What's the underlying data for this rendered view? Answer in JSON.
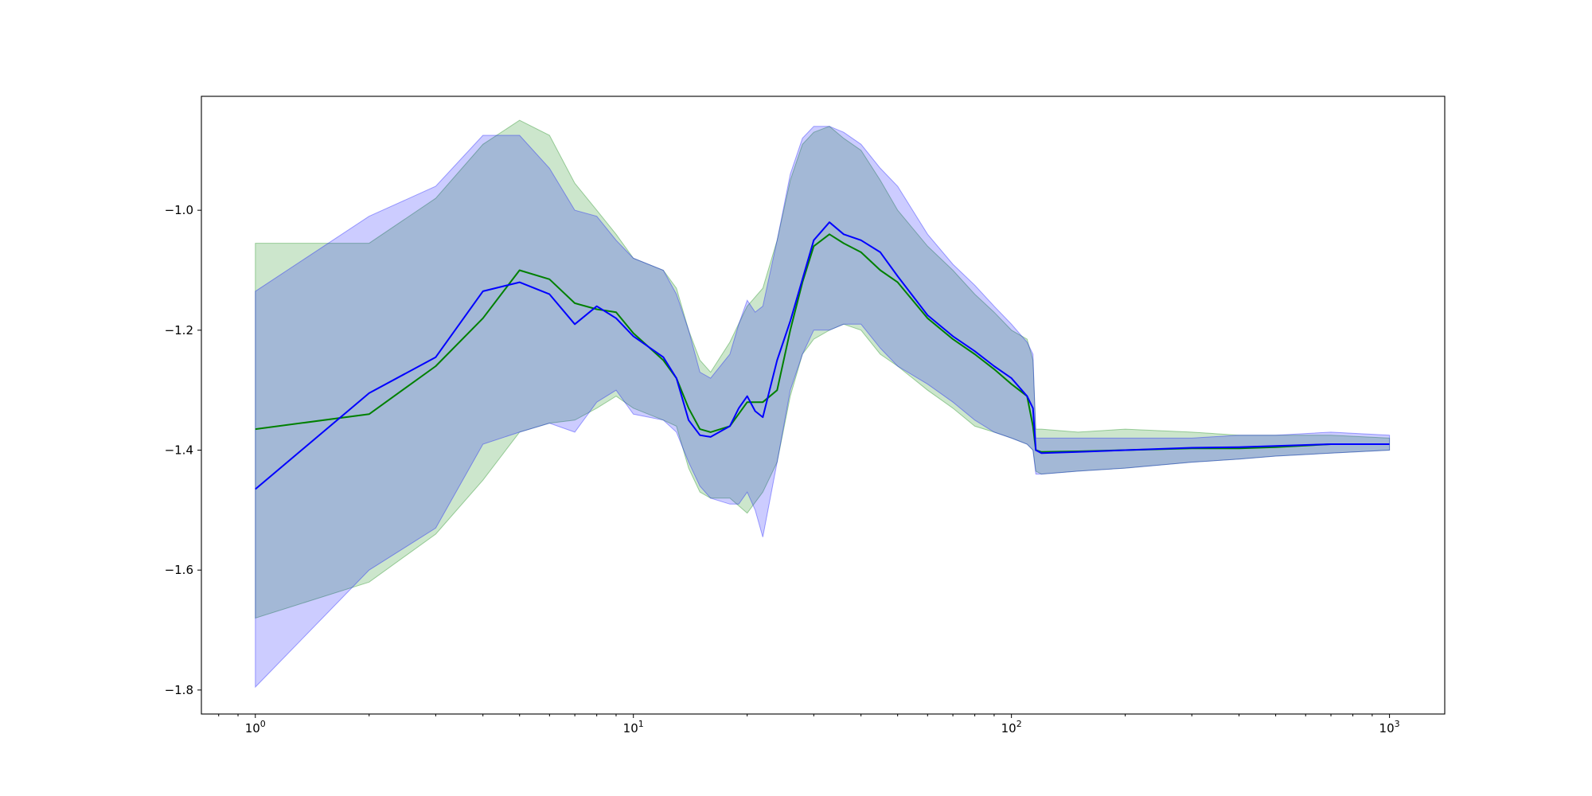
{
  "chart_data": {
    "type": "line",
    "title": "",
    "xlabel": "",
    "ylabel": "",
    "x_scale": "log",
    "xlim": [
      0.72,
      1400
    ],
    "ylim": [
      -1.84,
      -0.81
    ],
    "grid": false,
    "x_ticks": [
      {
        "value": 1,
        "base": "10",
        "exp": "0"
      },
      {
        "value": 10,
        "base": "10",
        "exp": "1"
      },
      {
        "value": 100,
        "base": "10",
        "exp": "2"
      },
      {
        "value": 1000,
        "base": "10",
        "exp": "3"
      }
    ],
    "y_ticks": [
      {
        "value": -1.0,
        "label": "−1.0"
      },
      {
        "value": -1.2,
        "label": "−1.2"
      },
      {
        "value": -1.4,
        "label": "−1.4"
      },
      {
        "value": -1.6,
        "label": "−1.6"
      },
      {
        "value": -1.8,
        "label": "−1.8"
      }
    ],
    "series": [
      {
        "color": "#008000",
        "band_color": "#008000",
        "band_opacity": 0.2,
        "x": [
          1,
          2,
          3,
          4,
          5,
          6,
          7,
          8,
          9,
          10,
          12,
          13,
          14,
          15,
          16,
          18,
          20,
          22,
          24,
          26,
          28,
          30,
          33,
          36,
          40,
          45,
          50,
          60,
          70,
          80,
          90,
          100,
          110,
          114,
          116,
          120,
          150,
          200,
          300,
          400,
          500,
          700,
          1000
        ],
        "mean": [
          -1.365,
          -1.34,
          -1.26,
          -1.18,
          -1.1,
          -1.115,
          -1.155,
          -1.165,
          -1.17,
          -1.205,
          -1.25,
          -1.28,
          -1.33,
          -1.365,
          -1.37,
          -1.36,
          -1.32,
          -1.32,
          -1.3,
          -1.2,
          -1.12,
          -1.06,
          -1.04,
          -1.055,
          -1.07,
          -1.1,
          -1.12,
          -1.18,
          -1.215,
          -1.24,
          -1.265,
          -1.29,
          -1.31,
          -1.36,
          -1.4,
          -1.403,
          -1.402,
          -1.4,
          -1.397,
          -1.397,
          -1.395,
          -1.39,
          -1.39
        ],
        "upper": [
          -1.055,
          -1.055,
          -0.98,
          -0.89,
          -0.85,
          -0.875,
          -0.955,
          -1.0,
          -1.04,
          -1.08,
          -1.1,
          -1.13,
          -1.2,
          -1.25,
          -1.27,
          -1.22,
          -1.16,
          -1.13,
          -1.05,
          -0.95,
          -0.89,
          -0.87,
          -0.86,
          -0.88,
          -0.9,
          -0.95,
          -1.0,
          -1.06,
          -1.1,
          -1.14,
          -1.17,
          -1.2,
          -1.215,
          -1.25,
          -1.365,
          -1.365,
          -1.37,
          -1.365,
          -1.37,
          -1.375,
          -1.375,
          -1.375,
          -1.38
        ],
        "lower": [
          -1.68,
          -1.62,
          -1.54,
          -1.45,
          -1.37,
          -1.355,
          -1.35,
          -1.33,
          -1.31,
          -1.33,
          -1.35,
          -1.36,
          -1.43,
          -1.47,
          -1.48,
          -1.48,
          -1.505,
          -1.47,
          -1.42,
          -1.31,
          -1.24,
          -1.215,
          -1.2,
          -1.19,
          -1.2,
          -1.24,
          -1.26,
          -1.3,
          -1.33,
          -1.36,
          -1.37,
          -1.38,
          -1.39,
          -1.4,
          -1.435,
          -1.44,
          -1.435,
          -1.43,
          -1.42,
          -1.415,
          -1.41,
          -1.405,
          -1.4
        ]
      },
      {
        "color": "#0000ff",
        "band_color": "#0000ff",
        "band_opacity": 0.2,
        "x": [
          1,
          2,
          3,
          4,
          5,
          6,
          7,
          8,
          9,
          10,
          12,
          13,
          14,
          15,
          16,
          18,
          19,
          20,
          21,
          22,
          24,
          26,
          28,
          30,
          33,
          36,
          40,
          45,
          50,
          60,
          70,
          80,
          90,
          100,
          110,
          114,
          116,
          120,
          150,
          200,
          300,
          400,
          500,
          700,
          1000
        ],
        "mean": [
          -1.465,
          -1.305,
          -1.245,
          -1.135,
          -1.12,
          -1.14,
          -1.19,
          -1.16,
          -1.18,
          -1.21,
          -1.245,
          -1.28,
          -1.35,
          -1.375,
          -1.378,
          -1.36,
          -1.33,
          -1.31,
          -1.335,
          -1.345,
          -1.25,
          -1.185,
          -1.115,
          -1.05,
          -1.02,
          -1.04,
          -1.05,
          -1.07,
          -1.11,
          -1.175,
          -1.21,
          -1.235,
          -1.26,
          -1.28,
          -1.31,
          -1.33,
          -1.4,
          -1.405,
          -1.403,
          -1.4,
          -1.396,
          -1.395,
          -1.393,
          -1.39,
          -1.39
        ],
        "upper": [
          -1.135,
          -1.01,
          -0.96,
          -0.875,
          -0.875,
          -0.93,
          -1.0,
          -1.01,
          -1.05,
          -1.08,
          -1.1,
          -1.14,
          -1.2,
          -1.27,
          -1.28,
          -1.24,
          -1.19,
          -1.15,
          -1.17,
          -1.16,
          -1.05,
          -0.94,
          -0.88,
          -0.86,
          -0.86,
          -0.87,
          -0.89,
          -0.93,
          -0.96,
          -1.04,
          -1.09,
          -1.125,
          -1.16,
          -1.19,
          -1.22,
          -1.24,
          -1.38,
          -1.38,
          -1.38,
          -1.38,
          -1.38,
          -1.375,
          -1.375,
          -1.37,
          -1.375
        ],
        "lower": [
          -1.795,
          -1.6,
          -1.53,
          -1.39,
          -1.37,
          -1.355,
          -1.37,
          -1.32,
          -1.3,
          -1.34,
          -1.35,
          -1.37,
          -1.42,
          -1.46,
          -1.48,
          -1.49,
          -1.49,
          -1.47,
          -1.5,
          -1.545,
          -1.42,
          -1.3,
          -1.24,
          -1.2,
          -1.2,
          -1.19,
          -1.19,
          -1.23,
          -1.26,
          -1.29,
          -1.32,
          -1.35,
          -1.37,
          -1.38,
          -1.39,
          -1.4,
          -1.44,
          -1.44,
          -1.435,
          -1.43,
          -1.42,
          -1.415,
          -1.41,
          -1.405,
          -1.4
        ]
      }
    ]
  }
}
